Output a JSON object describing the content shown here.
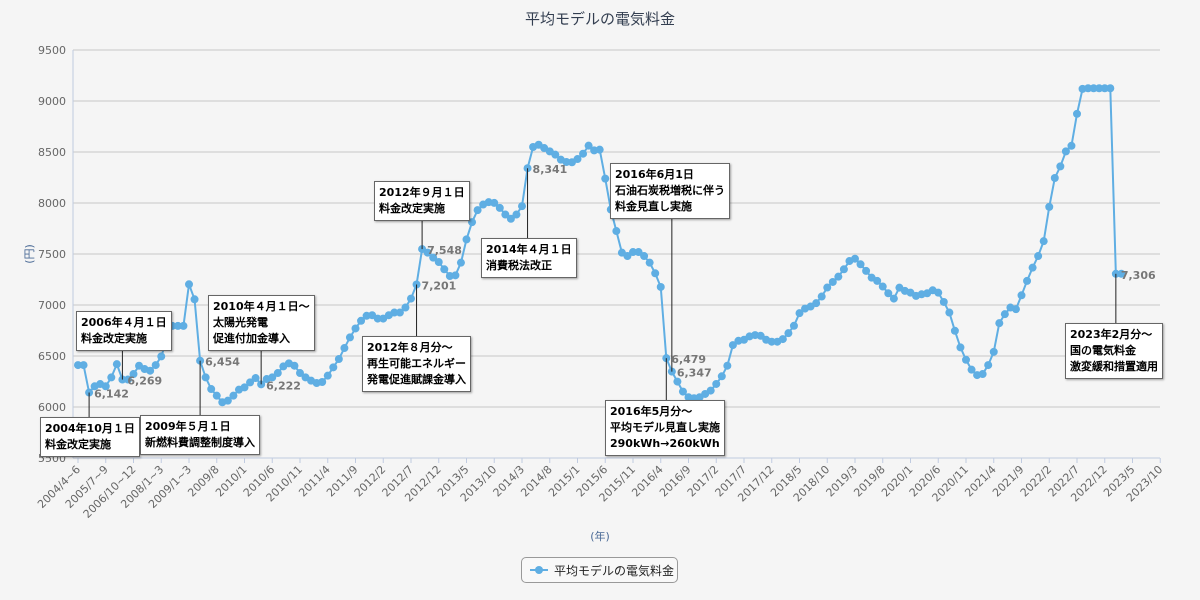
{
  "chart_data": {
    "type": "line",
    "title": "平均モデルの電気料金",
    "xlabel": "(年)",
    "ylabel": "(円)",
    "ylim": [
      5500,
      9500
    ],
    "yticks": [
      5500,
      6000,
      6500,
      7000,
      7500,
      8000,
      8500,
      9000,
      9500
    ],
    "grid": true,
    "legend_position": "bottom-center",
    "color": "#5faee3",
    "tick_interval": 5,
    "x_tick_labels": [
      "2004/4~6",
      "2005/7~9",
      "2006/10~12",
      "2008/1~3",
      "2009/1~3",
      "2009/8",
      "2010/1",
      "2010/6",
      "2010/11",
      "2011/4",
      "2011/9",
      "2012/2",
      "2012/7",
      "2012/12",
      "2013/5",
      "2013/10",
      "2014/3",
      "2014/8",
      "2015/1",
      "2015/6",
      "2015/11",
      "2016/4",
      "2016/9",
      "2017/2",
      "2017/7",
      "2017/12",
      "2018/5",
      "2018/10",
      "2019/3",
      "2019/8",
      "2020/1",
      "2020/6",
      "2020/11",
      "2021/4",
      "2021/9",
      "2022/2",
      "2022/7",
      "2022/12",
      "2023/5",
      "2023/10"
    ],
    "series": [
      {
        "name": "平均モデルの電気料金",
        "values": [
          6411,
          6411,
          6142,
          6203,
          6225,
          6203,
          6290,
          6420,
          6269,
          6269,
          6323,
          6405,
          6372,
          6356,
          6411,
          6496,
          6660,
          6795,
          6795,
          6795,
          7203,
          7056,
          6454,
          6290,
          6176,
          6111,
          6046,
          6062,
          6111,
          6170,
          6192,
          6241,
          6284,
          6222,
          6274,
          6290,
          6333,
          6398,
          6428,
          6405,
          6333,
          6290,
          6258,
          6235,
          6245,
          6307,
          6389,
          6470,
          6578,
          6682,
          6770,
          6845,
          6894,
          6900,
          6867,
          6867,
          6900,
          6926,
          6926,
          6975,
          7063,
          7201,
          7548,
          7513,
          7464,
          7421,
          7350,
          7284,
          7291,
          7415,
          7643,
          7812,
          7930,
          7985,
          8008,
          8001,
          7952,
          7887,
          7845,
          7887,
          7969,
          8341,
          8549,
          8571,
          8539,
          8506,
          8474,
          8425,
          8402,
          8399,
          8431,
          8483,
          8562,
          8516,
          8523,
          8239,
          7936,
          7725,
          7513,
          7480,
          7519,
          7519,
          7480,
          7415,
          7311,
          7177,
          6479,
          6347,
          6249,
          6151,
          6096,
          6086,
          6096,
          6128,
          6161,
          6226,
          6301,
          6405,
          6607,
          6649,
          6659,
          6692,
          6705,
          6698,
          6659,
          6640,
          6640,
          6666,
          6724,
          6796,
          6920,
          6965,
          6985,
          7018,
          7083,
          7171,
          7226,
          7278,
          7350,
          7431,
          7454,
          7399,
          7334,
          7268,
          7236,
          7181,
          7115,
          7063,
          7170,
          7138,
          7121,
          7089,
          7105,
          7115,
          7144,
          7121,
          7030,
          6926,
          6747,
          6584,
          6463,
          6366,
          6313,
          6323,
          6411,
          6541,
          6822,
          6910,
          6975,
          6959,
          7095,
          7236,
          7366,
          7480,
          7626,
          7962,
          8245,
          8359,
          8506,
          8561,
          8874,
          9119,
          9125,
          9125,
          9125,
          9125,
          9125,
          7306,
          7306
        ]
      }
    ],
    "data_labels": [
      {
        "index": 2,
        "text": "6,142"
      },
      {
        "index": 8,
        "text": "6,269"
      },
      {
        "index": 22,
        "text": "6,454"
      },
      {
        "index": 33,
        "text": "6,222"
      },
      {
        "index": 61,
        "text": "7,201"
      },
      {
        "index": 62,
        "text": "7,548"
      },
      {
        "index": 81,
        "text": "8,341"
      },
      {
        "index": 106,
        "text": "6,479"
      },
      {
        "index": 107,
        "text": "6,347"
      },
      {
        "index": 187,
        "text": "7,306"
      }
    ],
    "annotations": [
      {
        "index": 2,
        "lines": [
          "2004年10月１日",
          "料金改定実施"
        ]
      },
      {
        "index": 8,
        "lines": [
          "2006年４月１日",
          "料金改定実施"
        ]
      },
      {
        "index": 22,
        "lines": [
          "2009年５月１日",
          "新燃料費調整制度導入"
        ]
      },
      {
        "index": 33,
        "lines": [
          "2010年４月１日～",
          "太陽光発電",
          "促進付加金導入"
        ]
      },
      {
        "index": 62,
        "lines": [
          "2012年９月１日",
          "料金改定実施"
        ]
      },
      {
        "index": 61,
        "lines": [
          "2012年８月分～",
          "再生可能エネルギー",
          "発電促進賦課金導入"
        ]
      },
      {
        "index": 81,
        "lines": [
          "2014年４月１日",
          "消費税法改正"
        ]
      },
      {
        "index": 107,
        "lines": [
          "2016年6月1日",
          "石油石炭税増税に伴う",
          "料金見直し実施"
        ]
      },
      {
        "index": 106,
        "lines": [
          "2016年5月分～",
          "平均モデル見直し実施",
          "290kWh→260kWh"
        ]
      },
      {
        "index": 187,
        "lines": [
          "2023年2月分～",
          "国の電気料金",
          "激変緩和措置適用"
        ]
      }
    ]
  }
}
